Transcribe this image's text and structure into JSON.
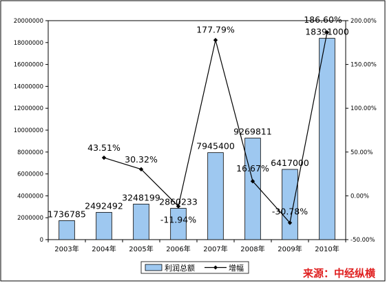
{
  "chart_data": {
    "type": "bar+line",
    "categories": [
      "2003年",
      "2004年",
      "2005年",
      "2006年",
      "2007年",
      "2008年",
      "2009年",
      "2010年"
    ],
    "series": [
      {
        "name": "利润总额",
        "type": "bar",
        "axis": "left",
        "values": [
          1736785,
          2492492,
          3248199,
          2860233,
          7945400,
          9269811,
          6417000,
          18391000
        ],
        "labels": [
          "1736785",
          "2492492",
          "3248199",
          "2860233",
          "7945400",
          "9269811",
          "6417000",
          "18391000"
        ]
      },
      {
        "name": "增幅",
        "type": "line",
        "axis": "right",
        "values": [
          null,
          43.51,
          30.32,
          -11.94,
          177.79,
          16.67,
          -30.78,
          186.6
        ],
        "labels": [
          "",
          "43.51%",
          "30.32%",
          "-11.94%",
          "177.79%",
          "16.67%",
          "-30.78%",
          "186.60%"
        ]
      }
    ],
    "left_axis": {
      "min": 0,
      "max": 20000000,
      "step": 2000000,
      "tick_labels": [
        "0",
        "2000000",
        "4000000",
        "6000000",
        "8000000",
        "10000000",
        "12000000",
        "14000000",
        "16000000",
        "18000000",
        "20000000"
      ]
    },
    "right_axis": {
      "min": -50,
      "max": 200,
      "step": 50,
      "tick_labels": [
        "-50.00%",
        "0.00%",
        "50.00%",
        "100.00%",
        "150.00%",
        "200.00%"
      ]
    },
    "grid": false,
    "legend_position": "bottom",
    "colors": {
      "bar": "#9ec8f0",
      "bar_stroke": "#000000",
      "line": "#000000",
      "source_text": "#e02020"
    }
  },
  "source_label": "来源：中经纵横"
}
